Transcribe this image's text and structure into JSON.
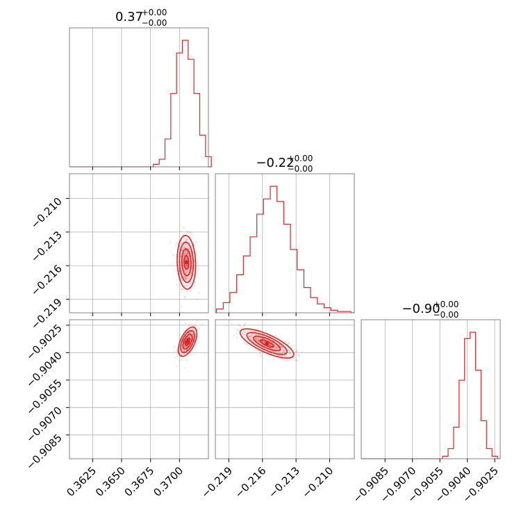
{
  "chart_data": {
    "type": "corner",
    "color": "#d62728",
    "grid": true,
    "parameters": [
      {
        "title_value": "0.37",
        "title_plus": "+0.00",
        "title_minus": "−0.00",
        "range": [
          0.3605,
          0.3725
        ],
        "ticks": [
          0.3625,
          0.365,
          0.3675,
          0.37
        ],
        "tick_labels": [
          "0.3625",
          "0.3650",
          "0.3675",
          "0.3700"
        ],
        "hist": {
          "x": [
            0.368,
            0.3685,
            0.369,
            0.3695,
            0.37,
            0.3705,
            0.371,
            0.3715,
            0.372,
            0.3725
          ],
          "heights": [
            0.02,
            0.06,
            0.22,
            0.58,
            0.9,
            1.0,
            0.85,
            0.58,
            0.25,
            0.08
          ]
        }
      },
      {
        "title_value": "−0.22",
        "title_plus": "+0.00",
        "title_minus": "−0.00",
        "range": [
          -0.2202,
          -0.2078
        ],
        "ticks": [
          -0.219,
          -0.216,
          -0.213,
          -0.21
        ],
        "tick_labels": [
          "−0.219",
          "−0.216",
          "−0.213",
          "−0.210"
        ],
        "hist": {
          "x": [
            -0.2198,
            -0.2192,
            -0.2186,
            -0.218,
            -0.2174,
            -0.2168,
            -0.2162,
            -0.2156,
            -0.215,
            -0.2144,
            -0.2138,
            -0.2132,
            -0.2126,
            -0.212,
            -0.2114,
            -0.2108,
            -0.2102,
            -0.2096,
            -0.209,
            -0.2084
          ],
          "heights": [
            0.03,
            0.08,
            0.16,
            0.3,
            0.45,
            0.6,
            0.78,
            0.9,
            1.0,
            0.88,
            0.7,
            0.5,
            0.34,
            0.2,
            0.12,
            0.07,
            0.04,
            0.02,
            0.01,
            0.01
          ]
        }
      },
      {
        "title_value": "−0.90",
        "title_plus": "+0.00",
        "title_minus": "−0.00",
        "range": [
          -0.9098,
          -0.9022
        ],
        "ticks": [
          -0.9085,
          -0.907,
          -0.9055,
          -0.904,
          -0.9025
        ],
        "tick_labels": [
          "−0.9085",
          "−0.9070",
          "−0.9055",
          "−0.9040",
          "−0.9025"
        ],
        "hist": {
          "x": [
            -0.9052,
            -0.9049,
            -0.9046,
            -0.9043,
            -0.904,
            -0.9037,
            -0.9034,
            -0.9031,
            -0.9028,
            -0.9025
          ],
          "heights": [
            0.02,
            0.08,
            0.25,
            0.62,
            0.95,
            1.0,
            0.7,
            0.3,
            0.08,
            0.02
          ]
        }
      }
    ],
    "pairs": [
      {
        "row": 1,
        "col": 0,
        "center": [
          0.3706,
          -0.2157
        ],
        "spread": [
          0.0004,
          0.0012
        ],
        "corr": -0.1
      },
      {
        "row": 2,
        "col": 0,
        "center": [
          0.3707,
          -0.9034
        ],
        "spread": [
          0.0004,
          0.0004
        ],
        "corr": 0.55
      },
      {
        "row": 2,
        "col": 1,
        "center": [
          -0.2156,
          -0.9035
        ],
        "spread": [
          0.0012,
          0.0004
        ],
        "corr": -0.75
      }
    ]
  }
}
